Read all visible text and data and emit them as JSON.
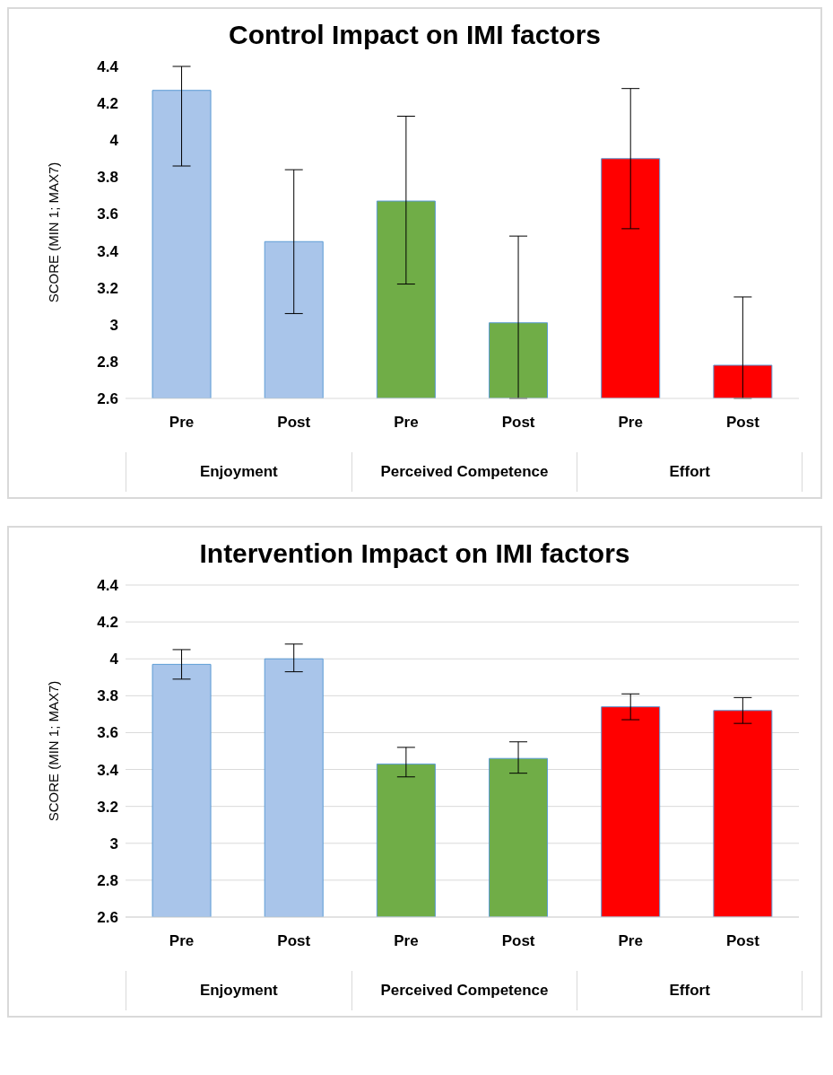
{
  "chart_data": [
    {
      "type": "bar",
      "title": "Control Impact on IMI factors",
      "ylabel": "SCORE (MIN 1; MAX7)",
      "categories": [
        "Pre",
        "Post",
        "Pre",
        "Post",
        "Pre",
        "Post"
      ],
      "annotations": [
        "Enjoyment",
        "Perceived Competence",
        "Effort"
      ],
      "values": [
        4.27,
        3.45,
        3.67,
        3.01,
        3.9,
        2.78
      ],
      "colors": [
        "#a9c5ea",
        "#a9c5ea",
        "#70ad47",
        "#70ad47",
        "#ff0000",
        "#ff0000"
      ],
      "errors": [
        [
          3.86,
          4.4
        ],
        [
          3.06,
          3.84
        ],
        [
          3.22,
          4.13
        ],
        [
          2.6,
          3.48
        ],
        [
          3.52,
          4.28
        ],
        [
          2.6,
          3.15
        ]
      ],
      "ylim": [
        2.6,
        4.4
      ],
      "yticks": [
        2.6,
        2.8,
        3,
        3.2,
        3.4,
        3.6,
        3.8,
        4,
        4.2,
        4.4
      ],
      "grid": false
    },
    {
      "type": "bar",
      "title": "Intervention Impact on IMI factors",
      "ylabel": "SCORE (MIN 1; MAX7)",
      "categories": [
        "Pre",
        "Post",
        "Pre",
        "Post",
        "Pre",
        "Post"
      ],
      "annotations": [
        "Enjoyment",
        "Perceived Competence",
        "Effort"
      ],
      "values": [
        3.97,
        4.0,
        3.43,
        3.46,
        3.74,
        3.72
      ],
      "colors": [
        "#a9c5ea",
        "#a9c5ea",
        "#70ad47",
        "#70ad47",
        "#ff0000",
        "#ff0000"
      ],
      "errors": [
        [
          3.89,
          4.05
        ],
        [
          3.93,
          4.08
        ],
        [
          3.36,
          3.52
        ],
        [
          3.38,
          3.55
        ],
        [
          3.67,
          3.81
        ],
        [
          3.65,
          3.79
        ]
      ],
      "ylim": [
        2.6,
        4.4
      ],
      "yticks": [
        2.6,
        2.8,
        3,
        3.2,
        3.4,
        3.6,
        3.8,
        4,
        4.2,
        4.4
      ],
      "grid": "y"
    }
  ]
}
